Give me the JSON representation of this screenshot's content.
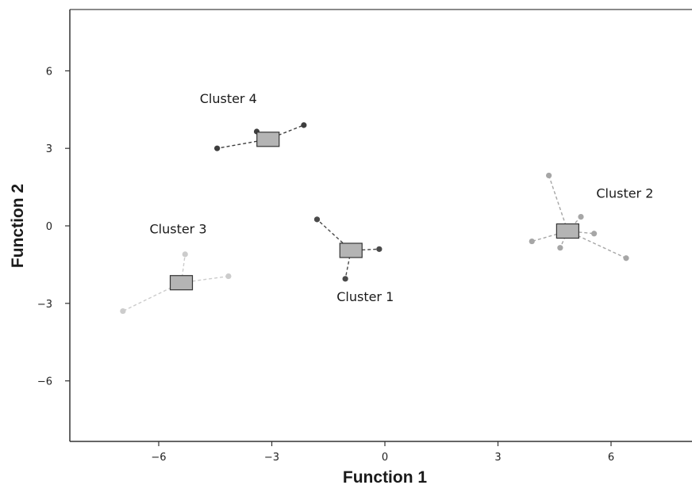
{
  "chart_data": {
    "type": "scatter",
    "title": "",
    "xlabel": "Function 1",
    "ylabel": "Function 2",
    "xlim": [
      -8.3,
      8.3
    ],
    "ylim": [
      -8.3,
      8.3
    ],
    "x_ticks": [
      -6,
      -3,
      0,
      3,
      6
    ],
    "y_ticks": [
      6,
      3,
      0,
      -3,
      -6
    ],
    "x_tick_labels": [
      "−6",
      "−3",
      "0",
      "3",
      "6"
    ],
    "y_tick_labels": [
      "6",
      "3",
      "0",
      "−3",
      "−6"
    ],
    "grid": false,
    "centroid_color": "#b4b4b4",
    "clusters": [
      {
        "label": "Cluster 1",
        "color": "#4a4a4a",
        "centroid": [
          -0.9,
          -0.95
        ],
        "points": [
          [
            -1.8,
            0.25
          ],
          [
            -0.15,
            -0.9
          ],
          [
            -1.05,
            -2.05
          ]
        ]
      },
      {
        "label": "Cluster 2",
        "color": "#a6a6a6",
        "centroid": [
          4.85,
          -0.2
        ],
        "points": [
          [
            4.35,
            1.95
          ],
          [
            5.2,
            0.35
          ],
          [
            5.55,
            -0.3
          ],
          [
            6.4,
            -1.25
          ],
          [
            4.65,
            -0.85
          ],
          [
            3.9,
            -0.6
          ]
        ]
      },
      {
        "label": "Cluster 3",
        "color": "#cccccc",
        "centroid": [
          -5.4,
          -2.2
        ],
        "points": [
          [
            -5.3,
            -1.1
          ],
          [
            -4.15,
            -1.95
          ],
          [
            -6.95,
            -3.3
          ]
        ]
      },
      {
        "label": "Cluster 4",
        "color": "#3e3e3e",
        "centroid": [
          -3.1,
          3.35
        ],
        "points": [
          [
            -4.45,
            3.0
          ],
          [
            -3.4,
            3.65
          ],
          [
            -2.15,
            3.9
          ]
        ]
      }
    ]
  }
}
